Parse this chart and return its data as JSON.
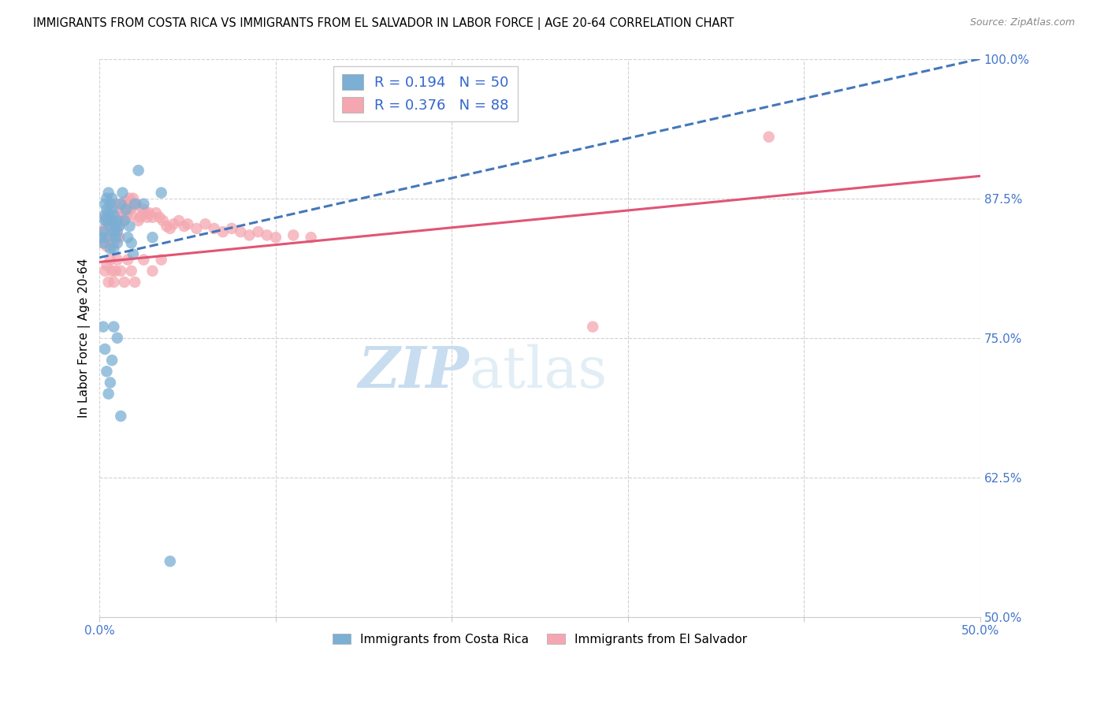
{
  "title": "IMMIGRANTS FROM COSTA RICA VS IMMIGRANTS FROM EL SALVADOR IN LABOR FORCE | AGE 20-64 CORRELATION CHART",
  "source": "Source: ZipAtlas.com",
  "ylabel": "In Labor Force | Age 20-64",
  "xlim": [
    0.0,
    0.5
  ],
  "ylim": [
    0.5,
    1.0
  ],
  "xticks": [
    0.0,
    0.1,
    0.2,
    0.3,
    0.4,
    0.5
  ],
  "yticks": [
    0.5,
    0.625,
    0.75,
    0.875,
    1.0
  ],
  "ytick_labels": [
    "50.0%",
    "62.5%",
    "75.0%",
    "87.5%",
    "100.0%"
  ],
  "xtick_labels_show_only_ends": true,
  "legend_label1": "R = 0.194   N = 50",
  "legend_label2": "R = 0.376   N = 88",
  "legend_bottom_label1": "Immigrants from Costa Rica",
  "legend_bottom_label2": "Immigrants from El Salvador",
  "color_blue": "#7BAFD4",
  "color_pink": "#F4A7B0",
  "color_blue_line": "#4477BB",
  "color_pink_line": "#E05575",
  "color_blue_text": "#3366CC",
  "color_axis_text": "#4477CC",
  "cr_x": [
    0.001,
    0.002,
    0.002,
    0.003,
    0.003,
    0.003,
    0.004,
    0.004,
    0.004,
    0.005,
    0.005,
    0.005,
    0.006,
    0.006,
    0.006,
    0.007,
    0.007,
    0.007,
    0.008,
    0.008,
    0.008,
    0.009,
    0.009,
    0.01,
    0.01,
    0.01,
    0.011,
    0.012,
    0.013,
    0.014,
    0.015,
    0.016,
    0.017,
    0.018,
    0.019,
    0.02,
    0.022,
    0.025,
    0.03,
    0.035,
    0.002,
    0.003,
    0.004,
    0.005,
    0.006,
    0.007,
    0.008,
    0.01,
    0.012,
    0.04
  ],
  "cr_y": [
    0.84,
    0.835,
    0.845,
    0.855,
    0.86,
    0.87,
    0.865,
    0.875,
    0.855,
    0.88,
    0.86,
    0.84,
    0.87,
    0.85,
    0.83,
    0.855,
    0.875,
    0.865,
    0.86,
    0.845,
    0.83,
    0.84,
    0.85,
    0.855,
    0.845,
    0.835,
    0.85,
    0.87,
    0.88,
    0.855,
    0.865,
    0.84,
    0.85,
    0.835,
    0.825,
    0.87,
    0.9,
    0.87,
    0.84,
    0.88,
    0.76,
    0.74,
    0.72,
    0.7,
    0.71,
    0.73,
    0.76,
    0.75,
    0.68,
    0.55
  ],
  "es_x": [
    0.001,
    0.002,
    0.002,
    0.003,
    0.003,
    0.003,
    0.004,
    0.004,
    0.005,
    0.005,
    0.005,
    0.006,
    0.006,
    0.007,
    0.007,
    0.008,
    0.008,
    0.008,
    0.009,
    0.009,
    0.01,
    0.01,
    0.011,
    0.011,
    0.012,
    0.012,
    0.013,
    0.013,
    0.014,
    0.014,
    0.015,
    0.015,
    0.016,
    0.016,
    0.017,
    0.017,
    0.018,
    0.018,
    0.019,
    0.02,
    0.021,
    0.022,
    0.023,
    0.024,
    0.025,
    0.026,
    0.027,
    0.028,
    0.03,
    0.032,
    0.034,
    0.036,
    0.038,
    0.04,
    0.042,
    0.045,
    0.048,
    0.05,
    0.055,
    0.06,
    0.065,
    0.07,
    0.075,
    0.08,
    0.085,
    0.09,
    0.095,
    0.1,
    0.11,
    0.12,
    0.003,
    0.004,
    0.005,
    0.006,
    0.007,
    0.008,
    0.009,
    0.01,
    0.012,
    0.014,
    0.016,
    0.018,
    0.02,
    0.025,
    0.03,
    0.035,
    0.38,
    0.28
  ],
  "es_y": [
    0.84,
    0.835,
    0.845,
    0.838,
    0.848,
    0.858,
    0.832,
    0.842,
    0.835,
    0.845,
    0.855,
    0.838,
    0.848,
    0.84,
    0.85,
    0.835,
    0.845,
    0.855,
    0.86,
    0.87,
    0.84,
    0.85,
    0.84,
    0.85,
    0.855,
    0.865,
    0.858,
    0.868,
    0.862,
    0.872,
    0.858,
    0.868,
    0.862,
    0.872,
    0.865,
    0.875,
    0.86,
    0.87,
    0.875,
    0.868,
    0.87,
    0.855,
    0.858,
    0.86,
    0.865,
    0.862,
    0.858,
    0.862,
    0.858,
    0.862,
    0.858,
    0.855,
    0.85,
    0.848,
    0.852,
    0.855,
    0.85,
    0.852,
    0.848,
    0.852,
    0.848,
    0.845,
    0.848,
    0.845,
    0.842,
    0.845,
    0.842,
    0.84,
    0.842,
    0.84,
    0.81,
    0.815,
    0.8,
    0.82,
    0.81,
    0.8,
    0.81,
    0.82,
    0.81,
    0.8,
    0.82,
    0.81,
    0.8,
    0.82,
    0.81,
    0.82,
    0.93,
    0.76
  ]
}
